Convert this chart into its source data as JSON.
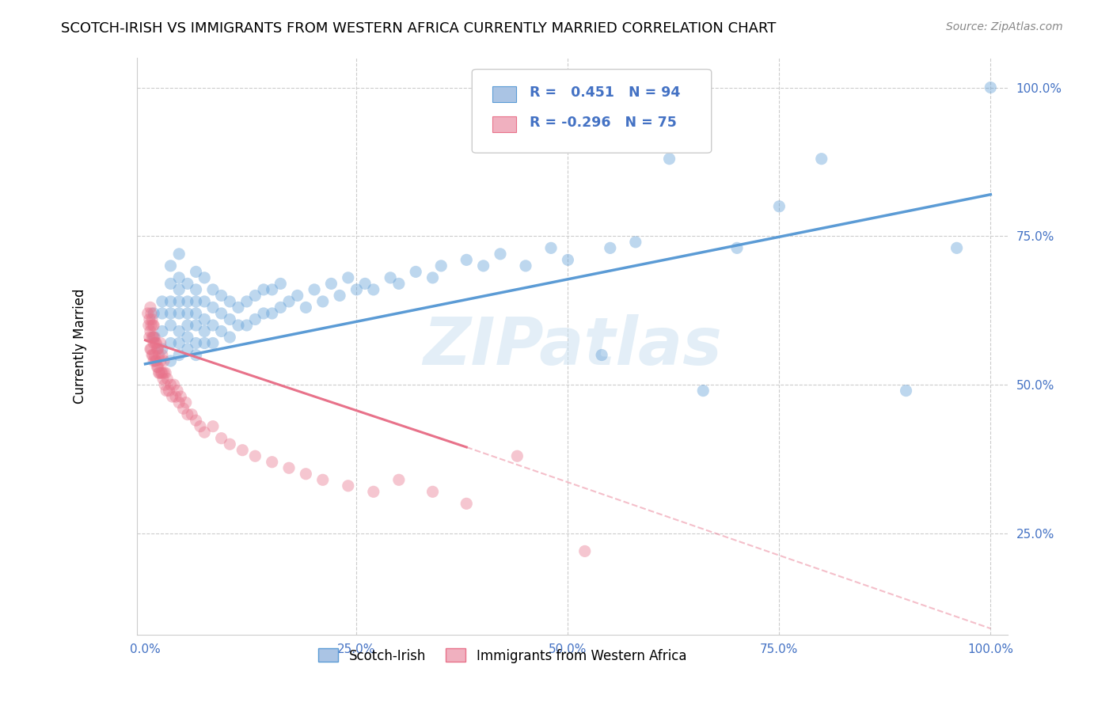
{
  "title": "SCOTCH-IRISH VS IMMIGRANTS FROM WESTERN AFRICA CURRENTLY MARRIED CORRELATION CHART",
  "source": "Source: ZipAtlas.com",
  "ylabel": "Currently Married",
  "legend_entries": [
    {
      "label": "Scotch-Irish",
      "fill_color": "#aac4e4",
      "edge_color": "#5b9bd5",
      "R": 0.451,
      "N": 94
    },
    {
      "label": "Immigrants from Western Africa",
      "fill_color": "#f0b0bf",
      "edge_color": "#e8728a",
      "R": -0.296,
      "N": 75
    }
  ],
  "blue_scatter_color": "#5b9bd5",
  "pink_scatter_color": "#e8728a",
  "watermark": "ZIPatlas",
  "blue_scatter": {
    "x": [
      0.01,
      0.01,
      0.02,
      0.02,
      0.02,
      0.02,
      0.03,
      0.03,
      0.03,
      0.03,
      0.03,
      0.03,
      0.03,
      0.04,
      0.04,
      0.04,
      0.04,
      0.04,
      0.04,
      0.04,
      0.04,
      0.05,
      0.05,
      0.05,
      0.05,
      0.05,
      0.05,
      0.06,
      0.06,
      0.06,
      0.06,
      0.06,
      0.06,
      0.06,
      0.07,
      0.07,
      0.07,
      0.07,
      0.07,
      0.08,
      0.08,
      0.08,
      0.08,
      0.09,
      0.09,
      0.09,
      0.1,
      0.1,
      0.1,
      0.11,
      0.11,
      0.12,
      0.12,
      0.13,
      0.13,
      0.14,
      0.14,
      0.15,
      0.15,
      0.16,
      0.16,
      0.17,
      0.18,
      0.19,
      0.2,
      0.21,
      0.22,
      0.23,
      0.24,
      0.25,
      0.26,
      0.27,
      0.29,
      0.3,
      0.32,
      0.34,
      0.35,
      0.38,
      0.4,
      0.42,
      0.45,
      0.48,
      0.5,
      0.54,
      0.55,
      0.58,
      0.62,
      0.66,
      0.7,
      0.75,
      0.8,
      0.9,
      0.96,
      1.0
    ],
    "y": [
      0.58,
      0.62,
      0.56,
      0.59,
      0.62,
      0.64,
      0.54,
      0.57,
      0.6,
      0.62,
      0.64,
      0.67,
      0.7,
      0.55,
      0.57,
      0.59,
      0.62,
      0.64,
      0.66,
      0.68,
      0.72,
      0.56,
      0.58,
      0.6,
      0.62,
      0.64,
      0.67,
      0.55,
      0.57,
      0.6,
      0.62,
      0.64,
      0.66,
      0.69,
      0.57,
      0.59,
      0.61,
      0.64,
      0.68,
      0.57,
      0.6,
      0.63,
      0.66,
      0.59,
      0.62,
      0.65,
      0.58,
      0.61,
      0.64,
      0.6,
      0.63,
      0.6,
      0.64,
      0.61,
      0.65,
      0.62,
      0.66,
      0.62,
      0.66,
      0.63,
      0.67,
      0.64,
      0.65,
      0.63,
      0.66,
      0.64,
      0.67,
      0.65,
      0.68,
      0.66,
      0.67,
      0.66,
      0.68,
      0.67,
      0.69,
      0.68,
      0.7,
      0.71,
      0.7,
      0.72,
      0.7,
      0.73,
      0.71,
      0.55,
      0.73,
      0.74,
      0.88,
      0.49,
      0.73,
      0.8,
      0.88,
      0.49,
      0.73,
      1.0
    ]
  },
  "pink_scatter": {
    "x": [
      0.003,
      0.004,
      0.005,
      0.005,
      0.006,
      0.006,
      0.006,
      0.007,
      0.007,
      0.007,
      0.008,
      0.008,
      0.008,
      0.009,
      0.009,
      0.009,
      0.01,
      0.01,
      0.01,
      0.011,
      0.011,
      0.012,
      0.012,
      0.013,
      0.013,
      0.014,
      0.014,
      0.015,
      0.015,
      0.016,
      0.016,
      0.017,
      0.018,
      0.018,
      0.019,
      0.02,
      0.02,
      0.021,
      0.022,
      0.022,
      0.023,
      0.024,
      0.025,
      0.026,
      0.028,
      0.03,
      0.032,
      0.034,
      0.036,
      0.038,
      0.04,
      0.042,
      0.045,
      0.048,
      0.05,
      0.055,
      0.06,
      0.065,
      0.07,
      0.08,
      0.09,
      0.1,
      0.115,
      0.13,
      0.15,
      0.17,
      0.19,
      0.21,
      0.24,
      0.27,
      0.3,
      0.34,
      0.38,
      0.44,
      0.52
    ],
    "y": [
      0.62,
      0.6,
      0.58,
      0.61,
      0.56,
      0.59,
      0.63,
      0.56,
      0.6,
      0.62,
      0.55,
      0.58,
      0.61,
      0.55,
      0.58,
      0.6,
      0.54,
      0.57,
      0.6,
      0.55,
      0.58,
      0.54,
      0.57,
      0.54,
      0.57,
      0.53,
      0.56,
      0.53,
      0.56,
      0.52,
      0.55,
      0.52,
      0.54,
      0.57,
      0.52,
      0.52,
      0.55,
      0.51,
      0.52,
      0.54,
      0.5,
      0.52,
      0.49,
      0.51,
      0.49,
      0.5,
      0.48,
      0.5,
      0.48,
      0.49,
      0.47,
      0.48,
      0.46,
      0.47,
      0.45,
      0.45,
      0.44,
      0.43,
      0.42,
      0.43,
      0.41,
      0.4,
      0.39,
      0.38,
      0.37,
      0.36,
      0.35,
      0.34,
      0.33,
      0.32,
      0.34,
      0.32,
      0.3,
      0.38,
      0.22
    ]
  },
  "blue_line": {
    "x0": 0.0,
    "y0": 0.535,
    "x1": 1.0,
    "y1": 0.82
  },
  "pink_line_solid": {
    "x0": 0.0,
    "y0": 0.575,
    "x1": 0.38,
    "y1": 0.395
  },
  "pink_line_dashed": {
    "x0": 0.38,
    "y0": 0.395,
    "x1": 1.0,
    "y1": 0.09
  },
  "xlim": [
    -0.01,
    1.02
  ],
  "ylim": [
    0.08,
    1.05
  ],
  "xtick_vals": [
    0.0,
    0.25,
    0.5,
    0.75,
    1.0
  ],
  "xtick_labels": [
    "0.0%",
    "25.0%",
    "50.0%",
    "75.0%",
    "100.0%"
  ],
  "ytick_vals": [
    0.25,
    0.5,
    0.75,
    1.0
  ],
  "ytick_labels": [
    "25.0%",
    "50.0%",
    "75.0%",
    "100.0%"
  ],
  "title_fontsize": 13,
  "axis_color": "#4472c4",
  "grid_color": "#cccccc",
  "watermark_color": "#c8dff0"
}
